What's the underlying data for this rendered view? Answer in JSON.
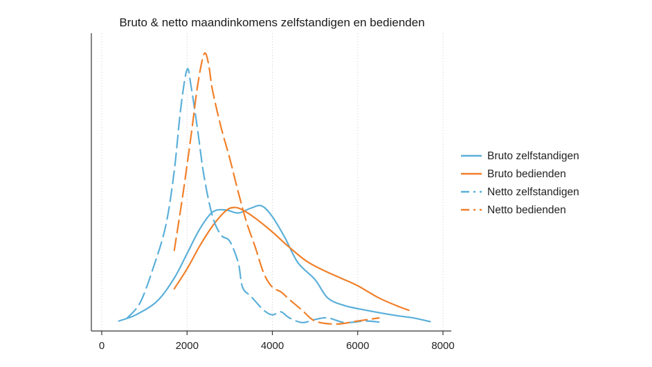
{
  "chart_data": {
    "type": "line",
    "title": "Bruto & netto maandinkomens zelfstandigen en bedienden",
    "xlabel": "",
    "ylabel": "",
    "xlim": [
      0,
      8000
    ],
    "x_ticks": [
      "0",
      "2000",
      "4000",
      "6000",
      "8000"
    ],
    "y_ticks_shown": false,
    "grid": "vertical dotted",
    "legend_position": "right",
    "colors": {
      "blue": "#5aafd9",
      "orange": "#f07f29"
    },
    "series": [
      {
        "name": "Bruto zelfstandigen",
        "color": "#5aafd9",
        "dash": "solid",
        "points": [
          [
            400,
            0.01
          ],
          [
            800,
            0.03
          ],
          [
            1300,
            0.075
          ],
          [
            1700,
            0.15
          ],
          [
            2000,
            0.23
          ],
          [
            2300,
            0.31
          ],
          [
            2600,
            0.365
          ],
          [
            2900,
            0.372
          ],
          [
            3200,
            0.362
          ],
          [
            3500,
            0.378
          ],
          [
            3750,
            0.385
          ],
          [
            4000,
            0.35
          ],
          [
            4300,
            0.28
          ],
          [
            4600,
            0.2
          ],
          [
            5000,
            0.145
          ],
          [
            5300,
            0.085
          ],
          [
            5700,
            0.06
          ],
          [
            6200,
            0.045
          ],
          [
            6800,
            0.03
          ],
          [
            7300,
            0.02
          ],
          [
            7700,
            0.008
          ]
        ]
      },
      {
        "name": "Bruto bedienden",
        "color": "#f07f29",
        "dash": "solid",
        "points": [
          [
            1700,
            0.115
          ],
          [
            2000,
            0.18
          ],
          [
            2300,
            0.255
          ],
          [
            2600,
            0.32
          ],
          [
            2900,
            0.368
          ],
          [
            3100,
            0.38
          ],
          [
            3300,
            0.372
          ],
          [
            3600,
            0.345
          ],
          [
            4000,
            0.3
          ],
          [
            4400,
            0.25
          ],
          [
            4800,
            0.205
          ],
          [
            5200,
            0.175
          ],
          [
            5600,
            0.15
          ],
          [
            6000,
            0.125
          ],
          [
            6500,
            0.085
          ],
          [
            7000,
            0.055
          ],
          [
            7200,
            0.045
          ]
        ]
      },
      {
        "name": "Netto zelfstandigen",
        "color": "#5aafd9",
        "dash": "longdash",
        "points": [
          [
            600,
            0.02
          ],
          [
            900,
            0.07
          ],
          [
            1200,
            0.18
          ],
          [
            1500,
            0.32
          ],
          [
            1700,
            0.5
          ],
          [
            1850,
            0.7
          ],
          [
            2000,
            0.83
          ],
          [
            2100,
            0.77
          ],
          [
            2250,
            0.63
          ],
          [
            2400,
            0.48
          ],
          [
            2600,
            0.35
          ],
          [
            2800,
            0.29
          ],
          [
            3000,
            0.27
          ],
          [
            3200,
            0.2
          ],
          [
            3300,
            0.12
          ],
          [
            3500,
            0.09
          ],
          [
            3800,
            0.045
          ],
          [
            4000,
            0.03
          ],
          [
            4200,
            0.04
          ],
          [
            4400,
            0.02
          ],
          [
            4700,
            0.005
          ],
          [
            5000,
            0.015
          ],
          [
            5300,
            0.02
          ],
          [
            5700,
            0.005
          ],
          [
            6200,
            0.01
          ],
          [
            6600,
            0.005
          ]
        ]
      },
      {
        "name": "Netto bedienden",
        "color": "#f07f29",
        "dash": "longdash",
        "points": [
          [
            1700,
            0.24
          ],
          [
            1900,
            0.42
          ],
          [
            2100,
            0.62
          ],
          [
            2250,
            0.78
          ],
          [
            2400,
            0.88
          ],
          [
            2500,
            0.85
          ],
          [
            2600,
            0.76
          ],
          [
            2800,
            0.64
          ],
          [
            3000,
            0.54
          ],
          [
            3200,
            0.43
          ],
          [
            3400,
            0.33
          ],
          [
            3600,
            0.25
          ],
          [
            3800,
            0.165
          ],
          [
            4000,
            0.12
          ],
          [
            4200,
            0.105
          ],
          [
            4400,
            0.08
          ],
          [
            4700,
            0.045
          ],
          [
            5000,
            0.01
          ],
          [
            5500,
            0.0
          ],
          [
            6000,
            0.01
          ],
          [
            6500,
            0.02
          ]
        ]
      }
    ]
  }
}
